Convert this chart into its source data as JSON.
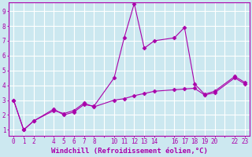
{
  "background_color": "#cce8f0",
  "grid_color": "#ffffff",
  "line_color": "#aa00aa",
  "xlabel": "Windchill (Refroidissement éolien,°C)",
  "xlabel_color": "#aa00aa",
  "xlim": [
    -0.5,
    23.5
  ],
  "ylim": [
    0.6,
    9.6
  ],
  "xtick_positions": [
    0,
    1,
    2,
    3,
    4,
    5,
    6,
    7,
    8,
    9,
    10,
    11,
    12,
    13,
    14,
    15,
    16,
    17,
    18,
    19,
    20,
    21,
    22,
    23
  ],
  "xtick_labels": [
    "0",
    "1",
    "2",
    "",
    "4",
    "5",
    "6",
    "7",
    "8",
    "",
    "10",
    "11",
    "12",
    "13",
    "14",
    "",
    "16",
    "17",
    "18",
    "19",
    "20",
    "",
    "22",
    "23"
  ],
  "yticks": [
    1,
    2,
    3,
    4,
    5,
    6,
    7,
    8,
    9
  ],
  "series1_x": [
    0,
    1,
    2,
    4,
    5,
    6,
    7,
    8,
    10,
    11,
    12,
    13,
    14,
    16,
    17,
    18,
    19,
    20,
    22,
    23
  ],
  "series1_y": [
    3.0,
    1.0,
    1.6,
    2.4,
    2.0,
    2.2,
    2.7,
    2.6,
    4.5,
    7.2,
    9.5,
    6.5,
    7.0,
    7.2,
    7.9,
    4.1,
    3.4,
    3.6,
    4.6,
    4.2
  ],
  "series2_x": [
    0,
    1,
    2,
    4,
    5,
    6,
    7,
    8,
    10,
    11,
    12,
    13,
    14,
    16,
    17,
    18,
    19,
    20,
    22,
    23
  ],
  "series2_y": [
    3.0,
    1.0,
    1.6,
    2.3,
    2.1,
    2.3,
    2.8,
    2.55,
    3.0,
    3.1,
    3.3,
    3.45,
    3.6,
    3.7,
    3.75,
    3.8,
    3.35,
    3.5,
    4.5,
    4.1
  ],
  "marker": "D",
  "markersize": 2.5,
  "linewidth": 0.8,
  "tick_fontsize": 5.5,
  "xlabel_fontsize": 6.5
}
